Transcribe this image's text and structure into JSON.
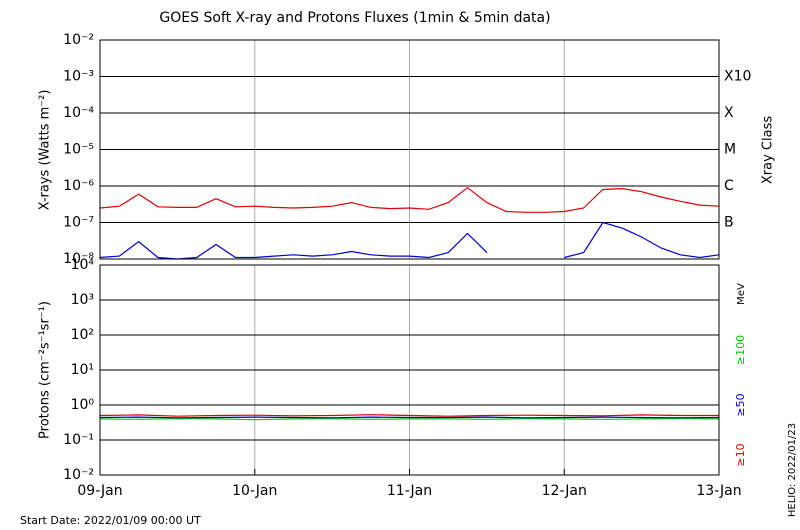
{
  "chart_data": [
    {
      "type": "line",
      "title": "GOES Soft X-ray and Protons Fluxes   (1min & 5min data)",
      "y_label": "X-rays (Watts m⁻²)",
      "y2_label": "Xray Class",
      "log_y": true,
      "x": [
        0,
        0.125,
        0.25,
        0.375,
        0.5,
        0.625,
        0.75,
        0.875,
        1,
        1.125,
        1.25,
        1.375,
        1.5,
        1.625,
        1.75,
        1.875,
        2,
        2.125,
        2.25,
        2.375,
        2.5,
        2.625,
        2.75,
        2.875,
        3,
        3.125,
        3.25,
        3.375,
        3.5,
        3.625,
        3.75,
        3.875,
        4
      ],
      "xlim": [
        0,
        4
      ],
      "ylim": [
        1e-08,
        0.01
      ],
      "yticks": [
        {
          "value": 0.01,
          "label": "10⁻²"
        },
        {
          "value": 0.001,
          "label": "10⁻³"
        },
        {
          "value": 0.0001,
          "label": "10⁻⁴"
        },
        {
          "value": 1e-05,
          "label": "10⁻⁵"
        },
        {
          "value": 1e-06,
          "label": "10⁻⁶"
        },
        {
          "value": 1e-07,
          "label": "10⁻⁷"
        },
        {
          "value": 1e-08,
          "label": "10⁻⁸"
        }
      ],
      "class_labels": [
        {
          "value": 0.001,
          "label": "X10"
        },
        {
          "value": 0.0001,
          "label": "X"
        },
        {
          "value": 1e-05,
          "label": "M"
        },
        {
          "value": 1e-06,
          "label": "C"
        },
        {
          "value": 1e-07,
          "label": "B"
        }
      ],
      "grid": true,
      "series": [
        {
          "color": "#e00000",
          "values": [
            2.5e-07,
            2.8e-07,
            6e-07,
            2.7e-07,
            2.6e-07,
            2.6e-07,
            4.5e-07,
            2.7e-07,
            2.8e-07,
            2.6e-07,
            2.5e-07,
            2.6e-07,
            2.8e-07,
            3.5e-07,
            2.6e-07,
            2.4e-07,
            2.5e-07,
            2.3e-07,
            3.5e-07,
            9e-07,
            3.5e-07,
            2e-07,
            1.9e-07,
            1.9e-07,
            2e-07,
            2.5e-07,
            8e-07,
            8.5e-07,
            7e-07,
            5e-07,
            3.8e-07,
            3e-07,
            2.8e-07
          ]
        },
        {
          "color": "#0000d0",
          "values": [
            1.1e-08,
            1.2e-08,
            3e-08,
            1.1e-08,
            1e-08,
            1.1e-08,
            2.5e-08,
            1.1e-08,
            1.1e-08,
            1.2e-08,
            1.3e-08,
            1.2e-08,
            1.3e-08,
            1.6e-08,
            1.3e-08,
            1.2e-08,
            1.2e-08,
            1.1e-08,
            1.5e-08,
            5e-08,
            1.5e-08,
            null,
            null,
            null,
            1.1e-08,
            1.5e-08,
            1e-07,
            7e-08,
            4e-08,
            2e-08,
            1.3e-08,
            1.1e-08,
            1.3e-08
          ]
        }
      ]
    },
    {
      "type": "line",
      "y_label": "Protons (cm⁻²s⁻¹sr⁻¹)",
      "legend_title": "MeV",
      "log_y": true,
      "x": [
        0,
        0.25,
        0.5,
        0.75,
        1,
        1.25,
        1.5,
        1.75,
        2,
        2.25,
        2.5,
        2.75,
        3,
        3.25,
        3.5,
        3.75,
        4
      ],
      "xlim": [
        0,
        4
      ],
      "ylim": [
        0.01,
        10000
      ],
      "xticks": [
        {
          "value": 0,
          "label": "09-Jan"
        },
        {
          "value": 1,
          "label": "10-Jan"
        },
        {
          "value": 2,
          "label": "11-Jan"
        },
        {
          "value": 3,
          "label": "12-Jan"
        },
        {
          "value": 4,
          "label": "13-Jan"
        }
      ],
      "yticks": [
        {
          "value": 10000,
          "label": "10⁴"
        },
        {
          "value": 1000,
          "label": "10³"
        },
        {
          "value": 100,
          "label": "10²"
        },
        {
          "value": 10,
          "label": "10¹"
        },
        {
          "value": 1,
          "label": "10⁰"
        },
        {
          "value": 0.1,
          "label": "10⁻¹"
        },
        {
          "value": 0.01,
          "label": "10⁻²"
        }
      ],
      "threshold": 10,
      "grid": true,
      "series": [
        {
          "name": "≥100",
          "color": "#00d000",
          "values": [
            0.4,
            0.39,
            0.41,
            0.4,
            0.38,
            0.4,
            0.41,
            0.39,
            0.4,
            0.4,
            0.39,
            0.41,
            0.4,
            0.39,
            0.4,
            0.41,
            0.4
          ]
        },
        {
          "name": "≥50",
          "color": "#0000d0",
          "values": [
            0.44,
            0.45,
            0.43,
            0.44,
            0.45,
            0.44,
            0.43,
            0.45,
            0.44,
            0.44,
            0.45,
            0.43,
            0.44,
            0.45,
            0.44,
            0.43,
            0.44
          ]
        },
        {
          "name": "≥10",
          "color": "#e00000",
          "values": [
            0.5,
            0.52,
            0.48,
            0.5,
            0.51,
            0.49,
            0.5,
            0.53,
            0.5,
            0.48,
            0.5,
            0.51,
            0.5,
            0.49,
            0.52,
            0.5,
            0.5
          ]
        }
      ]
    }
  ],
  "start_date_label": "Start Date: 2022/01/09 00:00 UT",
  "helio_label": "HELIO: 2022/01/23"
}
